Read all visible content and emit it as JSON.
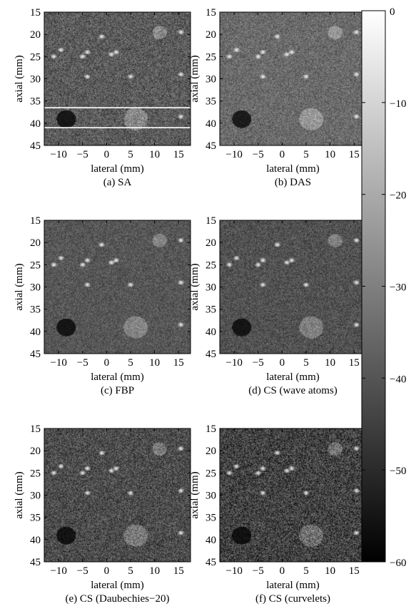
{
  "chart_data": {
    "type": "heatmap",
    "panels": [
      {
        "id": "sa",
        "caption": "(a) SA",
        "xlabel": "lateral (mm)",
        "ylabel": "axial (mm)",
        "xticks": [
          -10,
          -5,
          0,
          5,
          10,
          15
        ],
        "yticks": [
          15,
          20,
          25,
          30,
          35,
          40,
          45
        ],
        "xlim": [
          -13,
          17.5
        ],
        "ylim": [
          15,
          45
        ],
        "noise_mean": 0.36,
        "noise_amp": 0.17,
        "guide_lines_axial_mm": [
          36.5,
          41
        ]
      },
      {
        "id": "das",
        "caption": "(b) DAS",
        "xlabel": "lateral (mm)",
        "ylabel": "axial (mm)",
        "xticks": [
          -10,
          -5,
          0,
          5,
          10,
          15
        ],
        "yticks": [
          15,
          20,
          25,
          30,
          35,
          40,
          45
        ],
        "xlim": [
          -13,
          17.5
        ],
        "ylim": [
          15,
          45
        ],
        "noise_mean": 0.42,
        "noise_amp": 0.14,
        "guide_lines_axial_mm": []
      },
      {
        "id": "fbp",
        "caption": "(c) FBP",
        "xlabel": "lateral (mm)",
        "ylabel": "axial (mm)",
        "xticks": [
          -10,
          -5,
          0,
          5,
          10,
          15
        ],
        "yticks": [
          15,
          20,
          25,
          30,
          35,
          40,
          45
        ],
        "xlim": [
          -13,
          17.5
        ],
        "ylim": [
          15,
          45
        ],
        "noise_mean": 0.34,
        "noise_amp": 0.12,
        "guide_lines_axial_mm": []
      },
      {
        "id": "cs-wave-atoms",
        "caption": "(d) CS (wave atoms)",
        "xlabel": "lateral (mm)",
        "ylabel": "axial (mm)",
        "xticks": [
          -10,
          -5,
          0,
          5,
          10,
          15
        ],
        "yticks": [
          15,
          20,
          25,
          30,
          35,
          40,
          45
        ],
        "xlim": [
          -13,
          17.5
        ],
        "ylim": [
          15,
          45
        ],
        "noise_mean": 0.32,
        "noise_amp": 0.13,
        "guide_lines_axial_mm": []
      },
      {
        "id": "cs-daubechies",
        "caption": "(e) CS (Daubechies−20)",
        "xlabel": "lateral (mm)",
        "ylabel": "axial (mm)",
        "xticks": [
          -10,
          -5,
          0,
          5,
          10,
          15
        ],
        "yticks": [
          15,
          20,
          25,
          30,
          35,
          40,
          45
        ],
        "xlim": [
          -13,
          17.5
        ],
        "ylim": [
          15,
          45
        ],
        "noise_mean": 0.3,
        "noise_amp": 0.18,
        "guide_lines_axial_mm": []
      },
      {
        "id": "cs-curvelets",
        "caption": "(f) CS (curvelets)",
        "xlabel": "lateral (mm)",
        "ylabel": "axial (mm)",
        "xticks": [
          -10,
          -5,
          0,
          5,
          10,
          15
        ],
        "yticks": [
          15,
          20,
          25,
          30,
          35,
          40,
          45
        ],
        "xlim": [
          -13,
          17.5
        ],
        "ylim": [
          15,
          45
        ],
        "noise_mean": 0.26,
        "noise_amp": 0.22,
        "guide_lines_axial_mm": []
      }
    ],
    "point_targets_mm": [
      [
        -9.5,
        23.5
      ],
      [
        -11,
        25
      ],
      [
        -4,
        24
      ],
      [
        -5,
        25
      ],
      [
        1,
        24.5
      ],
      [
        2,
        24
      ],
      [
        -4,
        29.5
      ],
      [
        5,
        29.5
      ],
      [
        15.5,
        29
      ],
      [
        15.5,
        38.5
      ],
      [
        15.5,
        19.5
      ],
      [
        -1,
        20.5
      ]
    ],
    "cysts_mm": [
      {
        "x": -8.5,
        "y": 39,
        "r": 2.0,
        "kind": "anechoic"
      },
      {
        "x": 6,
        "y": 39,
        "r": 2.5,
        "kind": "hyperechoic"
      },
      {
        "x": 11,
        "y": 19.5,
        "r": 1.5,
        "kind": "hyperechoic"
      }
    ],
    "colorbar": {
      "ticks": [
        0,
        -10,
        -20,
        -30,
        -40,
        -50,
        -60
      ],
      "range_db": [
        -60,
        0
      ],
      "colors": [
        "#000000",
        "#ffffff"
      ]
    }
  }
}
